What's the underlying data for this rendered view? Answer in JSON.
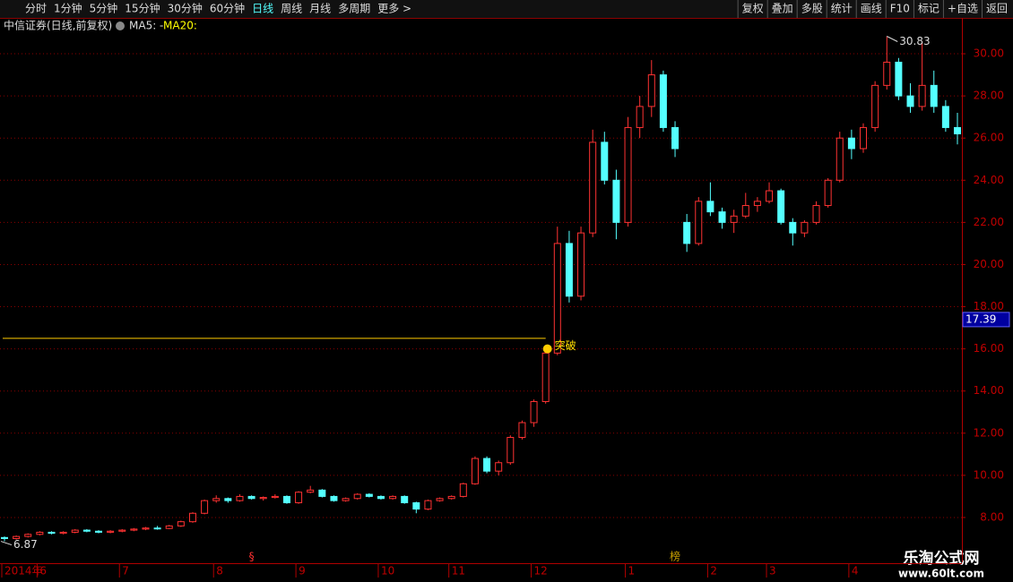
{
  "toolbar": {
    "periods": [
      "分时",
      "1分钟",
      "5分钟",
      "15分钟",
      "30分钟",
      "60分钟",
      "日线",
      "周线",
      "月线",
      "多周期",
      "更多 >"
    ],
    "buttons": [
      "复权",
      "叠加",
      "多股",
      "统计",
      "画线",
      "F10",
      "标记",
      "+自选",
      "返回"
    ]
  },
  "info": {
    "title": "中信证券(日线,前复权)",
    "ma5": "MA5: -",
    "ma20": "MA20:"
  },
  "watermark": {
    "name": "乐淘公式网",
    "url": "www.60lt.com"
  },
  "chart_data": {
    "type": "candlestick",
    "up_color": "#ff3232",
    "down_color": "#54ffff",
    "grid": true,
    "ylim": [
      7,
      31
    ],
    "yticks": [
      {
        "value": 8,
        "label": "8.00"
      },
      {
        "value": 10,
        "label": "10.00"
      },
      {
        "value": 12,
        "label": "12.00"
      },
      {
        "value": 14,
        "label": "14.00"
      },
      {
        "value": 16,
        "label": "16.00"
      },
      {
        "value": 18,
        "label": "18.00"
      },
      {
        "value": 20,
        "label": "20.00"
      },
      {
        "value": 22,
        "label": "22.00"
      },
      {
        "value": 24,
        "label": "24.00"
      },
      {
        "value": 26,
        "label": "26.00"
      },
      {
        "value": 28,
        "label": "28.00"
      },
      {
        "value": 30,
        "label": "30.00"
      }
    ],
    "xticks": [
      {
        "value": 0,
        "label": "2014年"
      },
      {
        "value": 3,
        "label": "6"
      },
      {
        "value": 10,
        "label": "7"
      },
      {
        "value": 18,
        "label": "8"
      },
      {
        "value": 25,
        "label": "9"
      },
      {
        "value": 32,
        "label": "10"
      },
      {
        "value": 38,
        "label": "11"
      },
      {
        "value": 45,
        "label": "12"
      },
      {
        "value": 53,
        "label": "1"
      },
      {
        "value": 60,
        "label": "2"
      },
      {
        "value": 65,
        "label": "3"
      },
      {
        "value": 72,
        "label": "4"
      }
    ],
    "ohlc": [
      [
        7.05,
        7.1,
        6.87,
        7.0
      ],
      [
        7.0,
        7.15,
        6.95,
        7.1
      ],
      [
        7.1,
        7.25,
        7.05,
        7.2
      ],
      [
        7.2,
        7.35,
        7.15,
        7.3
      ],
      [
        7.3,
        7.35,
        7.2,
        7.25
      ],
      [
        7.25,
        7.35,
        7.2,
        7.3
      ],
      [
        7.3,
        7.45,
        7.25,
        7.4
      ],
      [
        7.4,
        7.45,
        7.3,
        7.35
      ],
      [
        7.35,
        7.4,
        7.25,
        7.3
      ],
      [
        7.3,
        7.4,
        7.25,
        7.35
      ],
      [
        7.35,
        7.45,
        7.3,
        7.4
      ],
      [
        7.4,
        7.5,
        7.35,
        7.45
      ],
      [
        7.45,
        7.55,
        7.4,
        7.5
      ],
      [
        7.5,
        7.6,
        7.42,
        7.48
      ],
      [
        7.48,
        7.65,
        7.45,
        7.6
      ],
      [
        7.6,
        7.85,
        7.55,
        7.8
      ],
      [
        7.8,
        8.25,
        7.75,
        8.2
      ],
      [
        8.2,
        8.85,
        8.15,
        8.8
      ],
      [
        8.8,
        9.05,
        8.7,
        8.9
      ],
      [
        8.9,
        8.95,
        8.7,
        8.8
      ],
      [
        8.8,
        9.1,
        8.75,
        9.0
      ],
      [
        9.0,
        9.05,
        8.85,
        8.9
      ],
      [
        8.9,
        9.0,
        8.8,
        8.95
      ],
      [
        8.95,
        9.1,
        8.9,
        9.0
      ],
      [
        9.0,
        9.05,
        8.65,
        8.7
      ],
      [
        8.7,
        9.25,
        8.65,
        9.2
      ],
      [
        9.2,
        9.5,
        9.15,
        9.3
      ],
      [
        9.3,
        9.35,
        8.95,
        9.0
      ],
      [
        9.0,
        9.05,
        8.75,
        8.8
      ],
      [
        8.8,
        8.95,
        8.75,
        8.9
      ],
      [
        8.9,
        9.15,
        8.85,
        9.1
      ],
      [
        9.1,
        9.15,
        8.95,
        9.0
      ],
      [
        9.0,
        9.05,
        8.85,
        8.9
      ],
      [
        8.9,
        9.05,
        8.85,
        9.0
      ],
      [
        9.0,
        9.05,
        8.65,
        8.7
      ],
      [
        8.7,
        8.75,
        8.2,
        8.4
      ],
      [
        8.4,
        8.85,
        8.35,
        8.8
      ],
      [
        8.8,
        8.95,
        8.75,
        8.9
      ],
      [
        8.9,
        9.05,
        8.85,
        9.0
      ],
      [
        9.0,
        9.65,
        8.95,
        9.6
      ],
      [
        9.6,
        10.9,
        9.55,
        10.8
      ],
      [
        10.8,
        10.9,
        10.1,
        10.2
      ],
      [
        10.2,
        10.7,
        10.0,
        10.6
      ],
      [
        10.6,
        11.9,
        10.5,
        11.8
      ],
      [
        11.8,
        12.6,
        11.7,
        12.5
      ],
      [
        12.5,
        13.6,
        12.3,
        13.5
      ],
      [
        13.5,
        16.0,
        13.4,
        15.8
      ],
      [
        15.8,
        21.8,
        15.7,
        21.0
      ],
      [
        21.0,
        21.6,
        18.2,
        18.5
      ],
      [
        18.5,
        21.8,
        18.3,
        21.5
      ],
      [
        21.5,
        26.4,
        21.3,
        25.8
      ],
      [
        25.8,
        26.3,
        23.8,
        24.0
      ],
      [
        24.0,
        24.5,
        21.2,
        22.0
      ],
      [
        22.0,
        27.0,
        21.8,
        26.5
      ],
      [
        26.5,
        28.0,
        26.0,
        27.5
      ],
      [
        27.5,
        29.7,
        27.0,
        29.0
      ],
      [
        29.0,
        29.2,
        26.3,
        26.5
      ],
      [
        26.5,
        26.8,
        25.1,
        25.5
      ],
      [
        22.0,
        22.4,
        20.6,
        21.0
      ],
      [
        21.0,
        23.2,
        20.9,
        23.0
      ],
      [
        23.0,
        23.9,
        22.3,
        22.5
      ],
      [
        22.5,
        22.7,
        21.7,
        22.0
      ],
      [
        22.0,
        22.6,
        21.5,
        22.3
      ],
      [
        22.3,
        23.4,
        22.2,
        22.8
      ],
      [
        22.8,
        23.2,
        22.5,
        23.0
      ],
      [
        23.0,
        23.9,
        22.9,
        23.5
      ],
      [
        23.5,
        23.6,
        21.9,
        22.0
      ],
      [
        22.0,
        22.2,
        20.9,
        21.5
      ],
      [
        21.5,
        22.1,
        21.3,
        22.0
      ],
      [
        22.0,
        23.0,
        21.9,
        22.8
      ],
      [
        22.8,
        24.1,
        22.7,
        24.0
      ],
      [
        24.0,
        26.3,
        23.9,
        26.0
      ],
      [
        26.0,
        26.4,
        25.0,
        25.5
      ],
      [
        25.5,
        26.7,
        25.3,
        26.5
      ],
      [
        26.5,
        28.7,
        26.3,
        28.5
      ],
      [
        28.5,
        30.83,
        28.3,
        29.6
      ],
      [
        29.6,
        29.8,
        27.8,
        28.0
      ],
      [
        28.0,
        28.6,
        27.2,
        27.5
      ],
      [
        27.5,
        30.6,
        27.3,
        28.5
      ],
      [
        28.5,
        29.2,
        27.2,
        27.5
      ],
      [
        27.5,
        27.8,
        26.3,
        26.5
      ],
      [
        26.5,
        27.2,
        25.7,
        26.2
      ]
    ],
    "high_label": {
      "index": 75,
      "value": 30.83
    },
    "low_label": {
      "index": 0,
      "value": 6.87
    },
    "breakout": {
      "text": "突破",
      "index": 46,
      "value": 16.0,
      "level": 16.5,
      "color": "#ffcc00"
    },
    "last_price": 17.39,
    "markers": [
      {
        "text": "§",
        "index": 21,
        "color": "#ff3232"
      },
      {
        "text": "榜",
        "index": 57,
        "color": "#c8a000"
      }
    ]
  }
}
